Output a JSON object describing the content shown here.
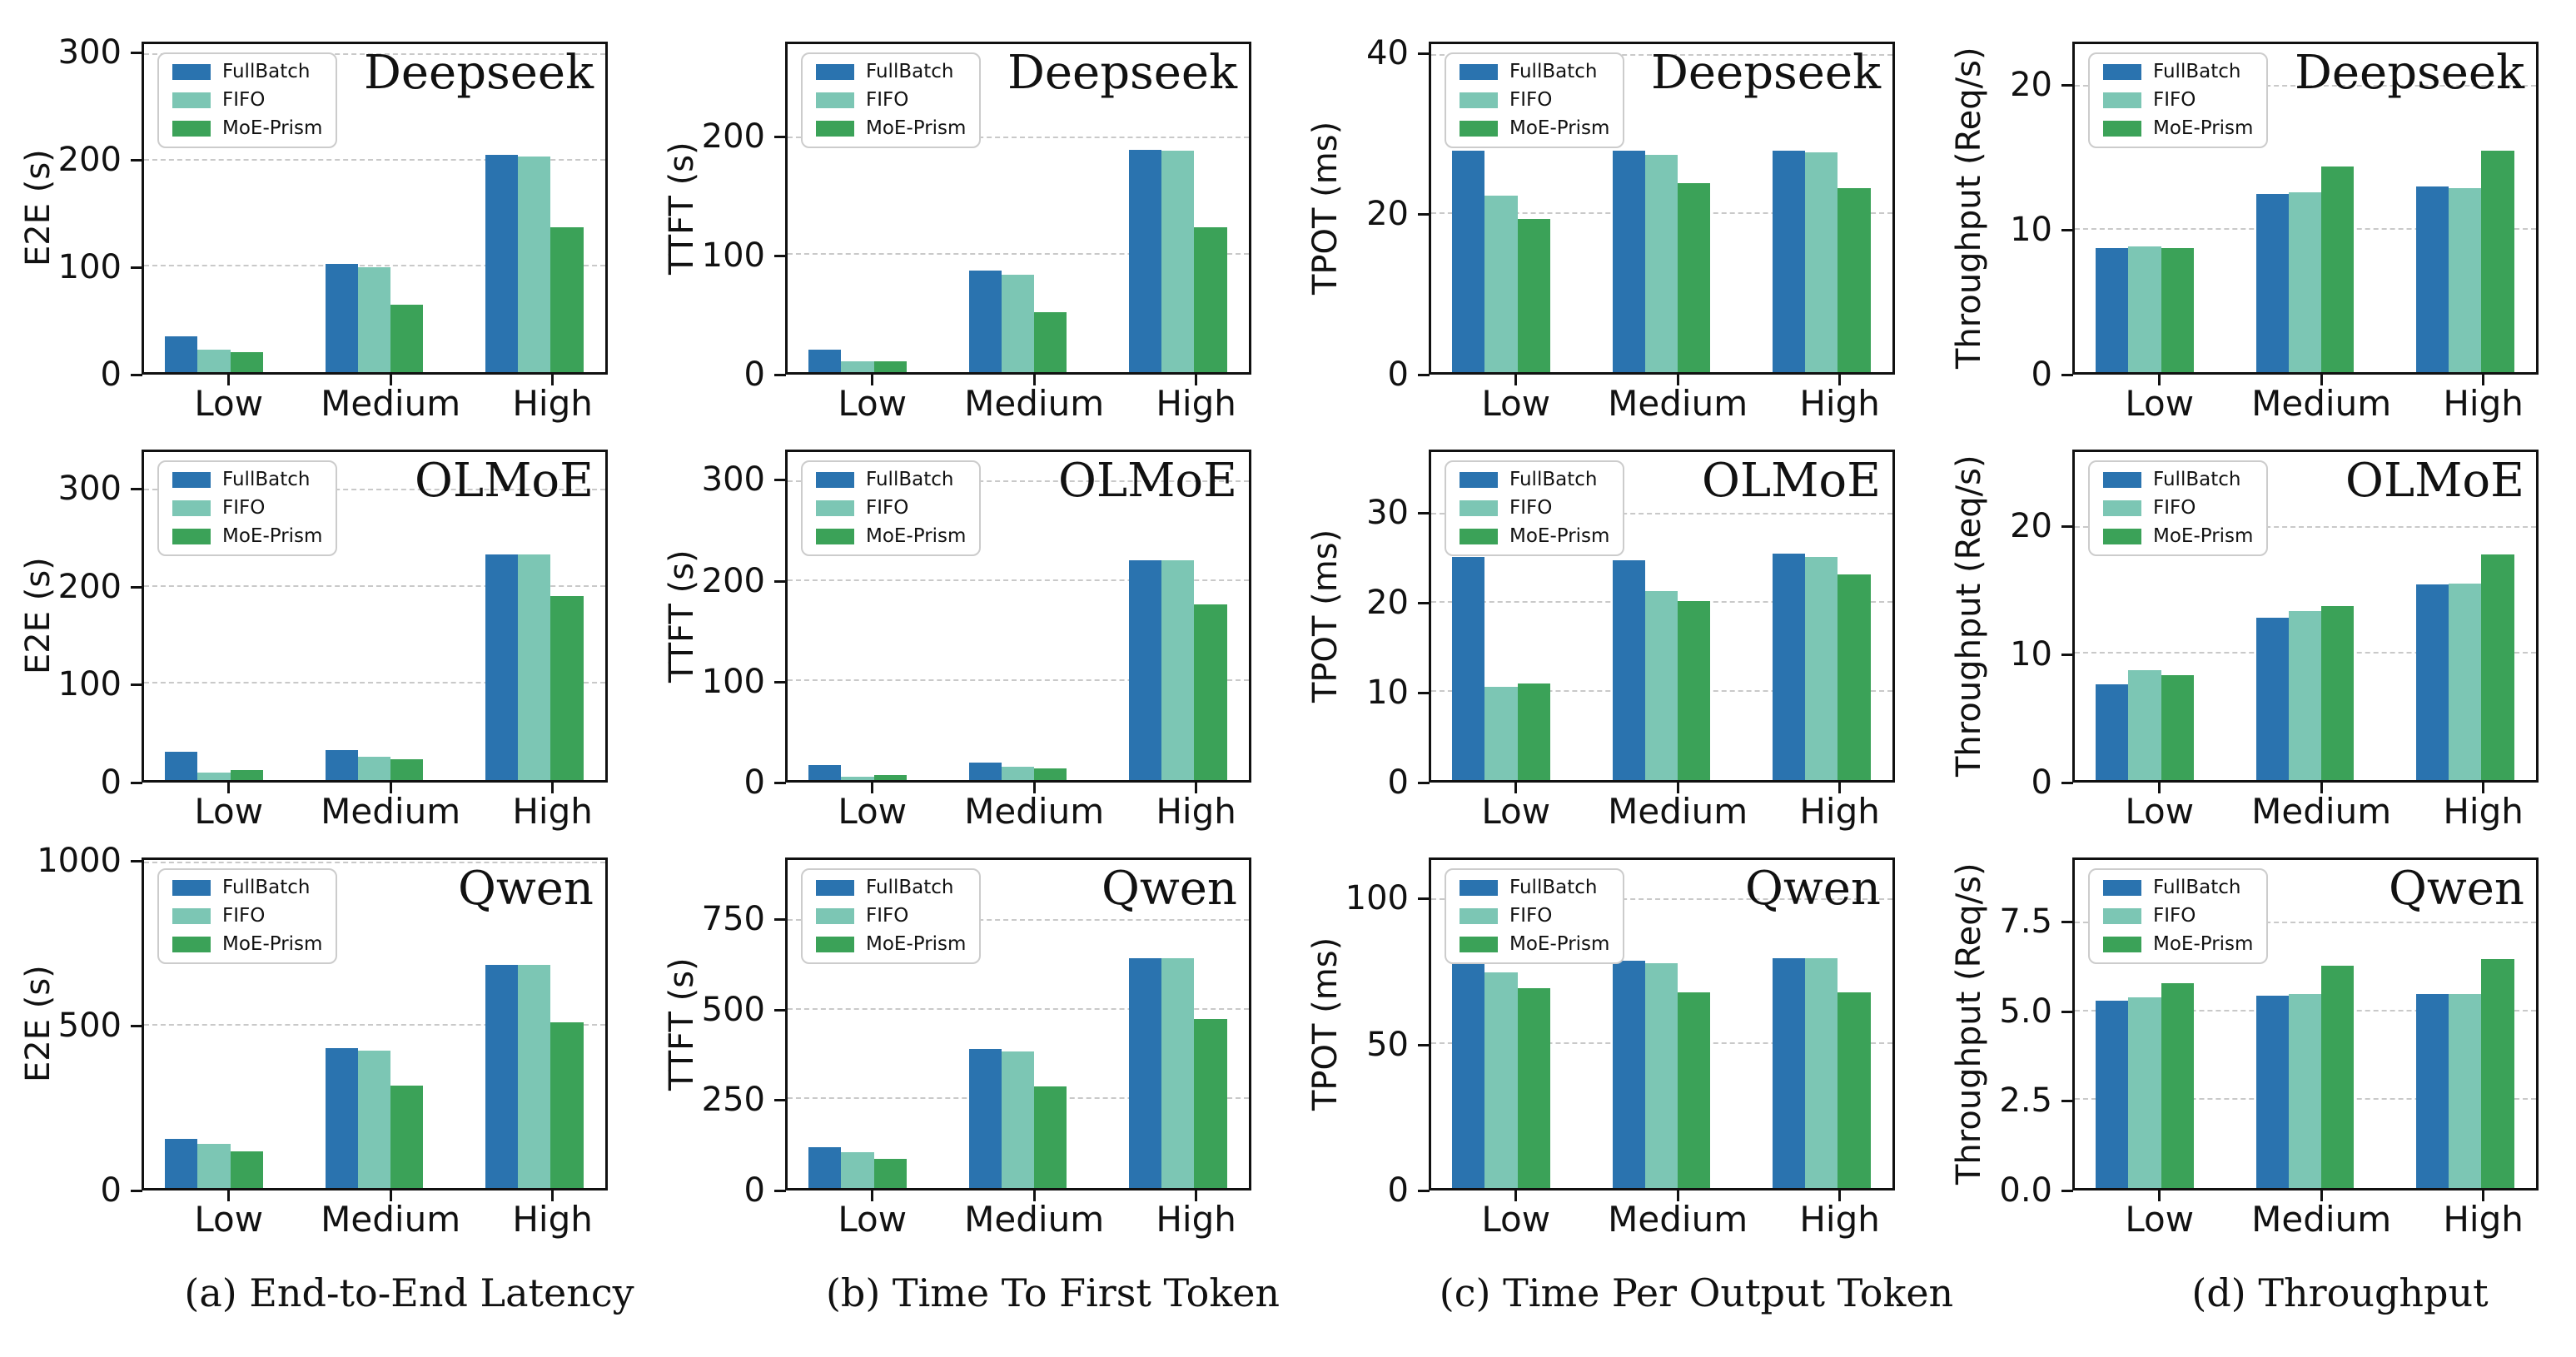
{
  "figure": {
    "background": "#ffffff",
    "spine_color": "#111111",
    "grid_color": "#c9c9c9",
    "legend": {
      "position": "top-left",
      "items": [
        {
          "label": "FullBatch",
          "color": "#2a73af"
        },
        {
          "label": "FIFO",
          "color": "#7cc6b4"
        },
        {
          "label": "MoE-Prism",
          "color": "#3ba258"
        }
      ]
    },
    "row_titles": [
      "Deepseek",
      "OLMoE",
      "Qwen"
    ],
    "captions": [
      "(a) End-to-End Latency",
      "(b) Time To First Token",
      "(c) Time Per Output Token",
      "(d) Throughput"
    ]
  },
  "chart_data": [
    {
      "id": "deepseek-e2e",
      "type": "bar",
      "title": "Deepseek",
      "ylabel": "E2E (s)",
      "categories": [
        "Low",
        "Medium",
        "High"
      ],
      "yticks": [
        "0",
        "100",
        "200",
        "300"
      ],
      "ylim": [
        0,
        310
      ],
      "grid": "dashed-horizontal",
      "legend_position": "top-left",
      "series": [
        {
          "name": "FullBatch",
          "values": [
            34,
            102,
            205
          ]
        },
        {
          "name": "FIFO",
          "values": [
            21,
            99,
            204
          ]
        },
        {
          "name": "MoE-Prism",
          "values": [
            19,
            64,
            137
          ]
        }
      ]
    },
    {
      "id": "deepseek-ttft",
      "type": "bar",
      "title": "Deepseek",
      "ylabel": "TTFT (s)",
      "categories": [
        "Low",
        "Medium",
        "High"
      ],
      "yticks": [
        "0",
        "100",
        "200"
      ],
      "ylim": [
        0,
        280
      ],
      "grid": "dashed-horizontal",
      "legend_position": "top-left",
      "series": [
        {
          "name": "FullBatch",
          "values": [
            19,
            87,
            190
          ]
        },
        {
          "name": "FIFO",
          "values": [
            9,
            83,
            189
          ]
        },
        {
          "name": "MoE-Prism",
          "values": [
            9,
            51,
            124
          ]
        }
      ]
    },
    {
      "id": "deepseek-tpot",
      "type": "bar",
      "title": "Deepseek",
      "ylabel": "TPOT (ms)",
      "categories": [
        "Low",
        "Medium",
        "High"
      ],
      "yticks": [
        "0",
        "20",
        "40"
      ],
      "ylim": [
        0,
        41.5
      ],
      "grid": "dashed-horizontal",
      "legend_position": "top-left",
      "series": [
        {
          "name": "FullBatch",
          "values": [
            28,
            28,
            28
          ]
        },
        {
          "name": "FIFO",
          "values": [
            22.3,
            27.5,
            27.8
          ]
        },
        {
          "name": "MoE-Prism",
          "values": [
            19.4,
            23.9,
            23.3
          ]
        }
      ]
    },
    {
      "id": "deepseek-throughput",
      "type": "bar",
      "title": "Deepseek",
      "ylabel": "Throughput (Req/s)",
      "categories": [
        "Low",
        "Medium",
        "High"
      ],
      "yticks": [
        "0",
        "10",
        "20"
      ],
      "ylim": [
        0,
        23
      ],
      "grid": "dashed-horizontal",
      "legend_position": "top-left",
      "series": [
        {
          "name": "FullBatch",
          "values": [
            8.7,
            12.5,
            13.0
          ]
        },
        {
          "name": "FIFO",
          "values": [
            8.8,
            12.6,
            12.9
          ]
        },
        {
          "name": "MoE-Prism",
          "values": [
            8.7,
            14.4,
            15.5
          ]
        }
      ]
    },
    {
      "id": "olmoe-e2e",
      "type": "bar",
      "title": "OLMoE",
      "ylabel": "E2E (s)",
      "categories": [
        "Low",
        "Medium",
        "High"
      ],
      "yticks": [
        "0",
        "100",
        "200",
        "300"
      ],
      "ylim": [
        0,
        340
      ],
      "grid": "dashed-horizontal",
      "legend_position": "top-left",
      "series": [
        {
          "name": "FullBatch",
          "values": [
            29,
            31,
            234
          ]
        },
        {
          "name": "FIFO",
          "values": [
            8,
            24,
            234
          ]
        },
        {
          "name": "MoE-Prism",
          "values": [
            10,
            22,
            191
          ]
        }
      ]
    },
    {
      "id": "olmoe-ttft",
      "type": "bar",
      "title": "OLMoE",
      "ylabel": "TTFT (s)",
      "categories": [
        "Low",
        "Medium",
        "High"
      ],
      "yticks": [
        "0",
        "100",
        "200",
        "300"
      ],
      "ylim": [
        0,
        330
      ],
      "grid": "dashed-horizontal",
      "legend_position": "top-left",
      "series": [
        {
          "name": "FullBatch",
          "values": [
            15,
            18,
            221
          ]
        },
        {
          "name": "FIFO",
          "values": [
            3,
            13,
            221
          ]
        },
        {
          "name": "MoE-Prism",
          "values": [
            5,
            12,
            177
          ]
        }
      ]
    },
    {
      "id": "olmoe-tpot",
      "type": "bar",
      "title": "OLMoE",
      "ylabel": "TPOT (ms)",
      "categories": [
        "Low",
        "Medium",
        "High"
      ],
      "yticks": [
        "0",
        "10",
        "20",
        "30"
      ],
      "ylim": [
        0,
        37
      ],
      "grid": "dashed-horizontal",
      "legend_position": "top-left",
      "series": [
        {
          "name": "FullBatch",
          "values": [
            25.2,
            24.8,
            25.5
          ]
        },
        {
          "name": "FIFO",
          "values": [
            10.5,
            21.3,
            25.2
          ]
        },
        {
          "name": "MoE-Prism",
          "values": [
            10.9,
            20.2,
            23.2
          ]
        }
      ]
    },
    {
      "id": "olmoe-throughput",
      "type": "bar",
      "title": "OLMoE",
      "ylabel": "Throughput (Req/s)",
      "categories": [
        "Low",
        "Medium",
        "High"
      ],
      "yticks": [
        "0",
        "10",
        "20"
      ],
      "ylim": [
        0,
        26
      ],
      "grid": "dashed-horizontal",
      "legend_position": "top-left",
      "series": [
        {
          "name": "FullBatch",
          "values": [
            7.6,
            12.9,
            15.5
          ]
        },
        {
          "name": "FIFO",
          "values": [
            8.7,
            13.4,
            15.6
          ]
        },
        {
          "name": "MoE-Prism",
          "values": [
            8.3,
            13.8,
            17.9
          ]
        }
      ]
    },
    {
      "id": "qwen-e2e",
      "type": "bar",
      "title": "Qwen",
      "ylabel": "E2E (s)",
      "categories": [
        "Low",
        "Medium",
        "High"
      ],
      "yticks": [
        "0",
        "500",
        "1000"
      ],
      "ylim": [
        0,
        1010
      ],
      "grid": "dashed-horizontal",
      "legend_position": "top-left",
      "series": [
        {
          "name": "FullBatch",
          "values": [
            151,
            431,
            688
          ]
        },
        {
          "name": "FIFO",
          "values": [
            135,
            422,
            688
          ]
        },
        {
          "name": "MoE-Prism",
          "values": [
            114,
            316,
            511
          ]
        }
      ]
    },
    {
      "id": "qwen-ttft",
      "type": "bar",
      "title": "Qwen",
      "ylabel": "TTFT (s)",
      "categories": [
        "Low",
        "Medium",
        "High"
      ],
      "yticks": [
        "0",
        "250",
        "500",
        "750"
      ],
      "ylim": [
        0,
        920
      ],
      "grid": "dashed-horizontal",
      "legend_position": "top-left",
      "series": [
        {
          "name": "FullBatch",
          "values": [
            115,
            391,
            645
          ]
        },
        {
          "name": "FIFO",
          "values": [
            101,
            382,
            644
          ]
        },
        {
          "name": "MoE-Prism",
          "values": [
            82,
            284,
            475
          ]
        }
      ]
    },
    {
      "id": "qwen-tpot",
      "type": "bar",
      "title": "Qwen",
      "ylabel": "TPOT (ms)",
      "categories": [
        "Low",
        "Medium",
        "High"
      ],
      "yticks": [
        "0",
        "50",
        "100"
      ],
      "ylim": [
        0,
        114
      ],
      "grid": "dashed-horizontal",
      "legend_position": "top-left",
      "series": [
        {
          "name": "FullBatch",
          "values": [
            79,
            79,
            80
          ]
        },
        {
          "name": "FIFO",
          "values": [
            75,
            78,
            80
          ]
        },
        {
          "name": "MoE-Prism",
          "values": [
            69.5,
            68,
            68
          ]
        }
      ]
    },
    {
      "id": "qwen-throughput",
      "type": "bar",
      "title": "Qwen",
      "ylabel": "Throughput (Req/s)",
      "categories": [
        "Low",
        "Medium",
        "High"
      ],
      "yticks": [
        "0.0",
        "2.5",
        "5.0",
        "7.5"
      ],
      "ylim": [
        0,
        9.3
      ],
      "grid": "dashed-horizontal",
      "legend_position": "top-left",
      "series": [
        {
          "name": "FullBatch",
          "values": [
            5.3,
            5.45,
            5.5
          ]
        },
        {
          "name": "FIFO",
          "values": [
            5.4,
            5.5,
            5.5
          ]
        },
        {
          "name": "MoE-Prism",
          "values": [
            5.8,
            6.3,
            6.5
          ]
        }
      ]
    }
  ]
}
